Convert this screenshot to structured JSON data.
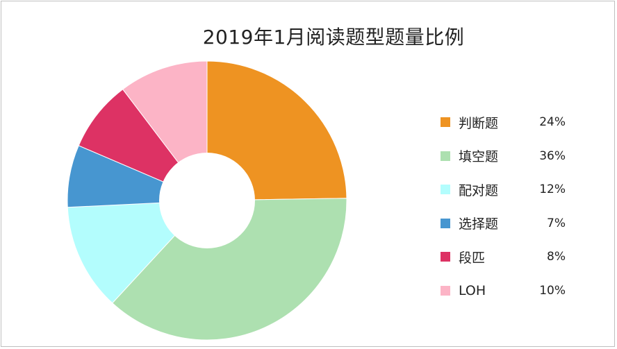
{
  "chart_data": {
    "type": "pie",
    "title": "2019年1月阅读题型题量比例",
    "donut": true,
    "legend_position": "right",
    "categories": [
      "判断题",
      "填空题",
      "配对题",
      "选择题",
      "段匹",
      "LOH"
    ],
    "values": [
      24,
      36,
      12,
      7,
      8,
      10
    ],
    "value_labels": [
      "24%",
      "36%",
      "12%",
      "7%",
      "8%",
      "10%"
    ],
    "colors": [
      "#ee9322",
      "#ade0b0",
      "#b3fdfd",
      "#4796d0",
      "#dd3264",
      "#fcb4c6"
    ]
  }
}
